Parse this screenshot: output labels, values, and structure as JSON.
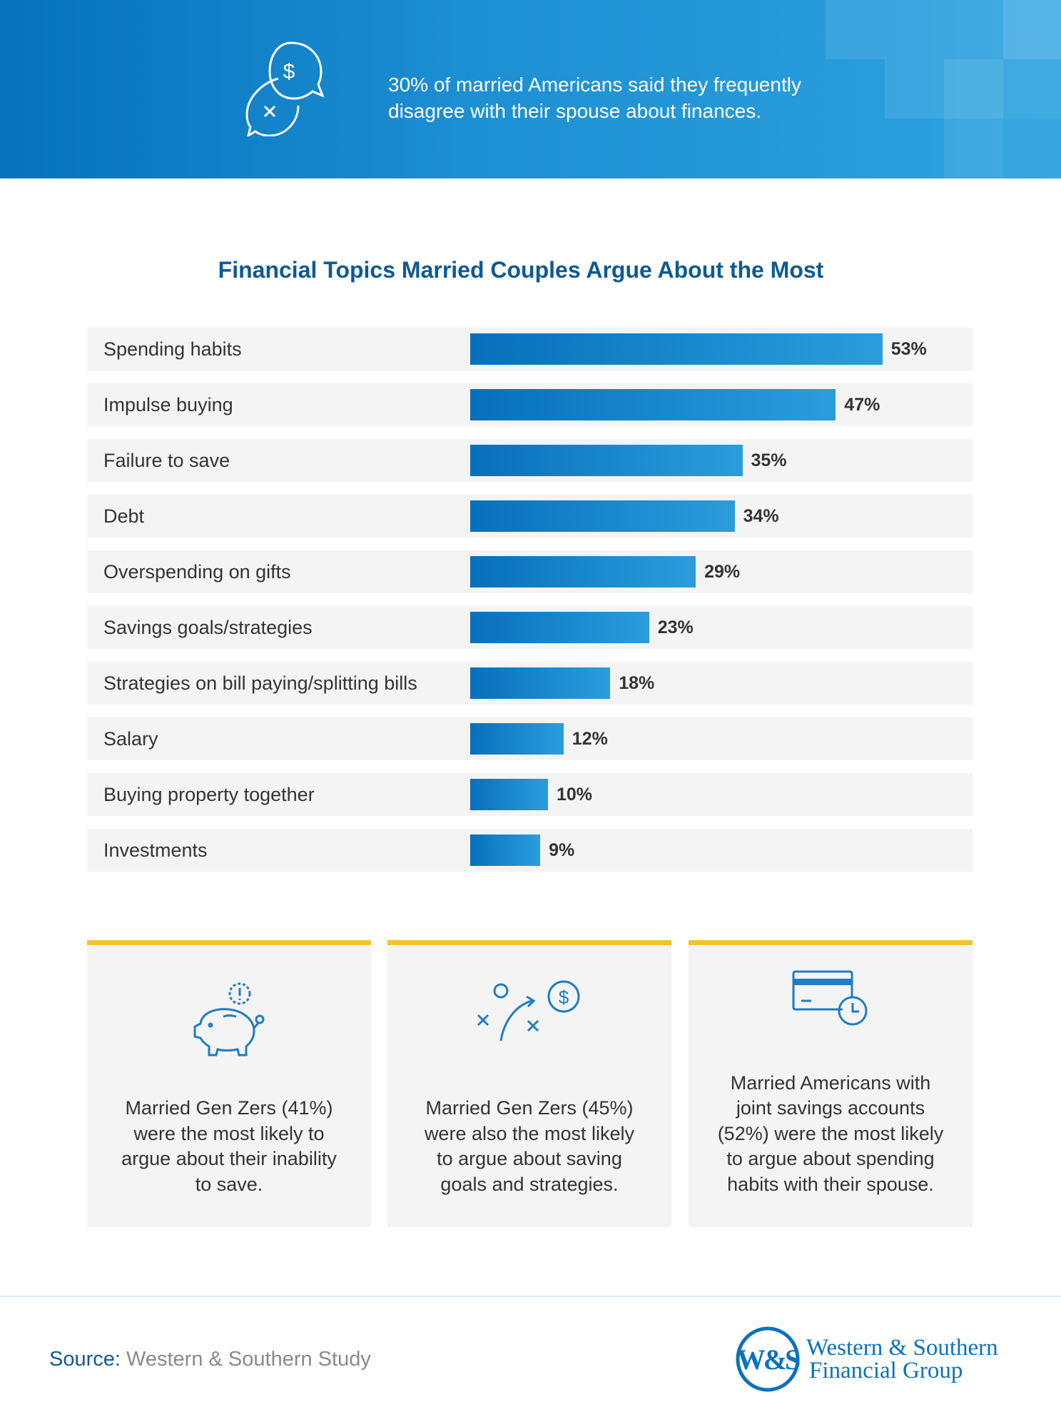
{
  "header": {
    "text": "30% of married Americans said they frequently disagree with their spouse about finances.",
    "icon": "speech-bubbles-dollar-x-icon"
  },
  "chart_data": {
    "type": "bar",
    "orientation": "horizontal",
    "title": "Financial Topics Married Couples Argue About the Most",
    "categories": [
      "Spending habits",
      "Impulse buying",
      "Failure to save",
      "Debt",
      "Overspending on gifts",
      "Savings goals/strategies",
      "Strategies on bill paying/splitting bills",
      "Salary",
      "Buying property together",
      "Investments"
    ],
    "values": [
      53,
      47,
      35,
      34,
      29,
      23,
      18,
      12,
      10,
      9
    ],
    "labels": [
      "53%",
      "47%",
      "35%",
      "34%",
      "29%",
      "23%",
      "18%",
      "12%",
      "10%",
      "9%"
    ],
    "unit": "%",
    "grid": false,
    "bar_color": [
      "#0670bc",
      "#2b9ddc"
    ]
  },
  "cards": [
    {
      "icon": "piggy-bank-alert-icon",
      "text": "Married Gen Zers (41%) were the most likely to argue about their inability to save."
    },
    {
      "icon": "strategy-play-dollar-icon",
      "text": "Married Gen Zers (45%) were also the most likely to argue about saving goals and strategies."
    },
    {
      "icon": "credit-card-clock-icon",
      "text": "Married Americans with joint savings accounts (52%) were the most likely to argue about spending habits with their spouse."
    }
  ],
  "footer": {
    "source_label": "Source:",
    "source_value": "Western & Southern Study",
    "logo_text": "Western & Southern Financial Group",
    "logo_mark": "W&S"
  },
  "colors": {
    "accent": "#f2c230",
    "brand": "#0a72bd",
    "title": "#0d5a94"
  }
}
